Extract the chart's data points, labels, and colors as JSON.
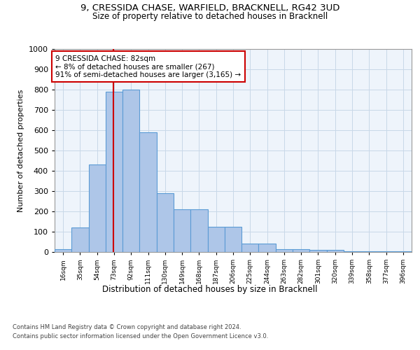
{
  "title": "9, CRESSIDA CHASE, WARFIELD, BRACKNELL, RG42 3UD",
  "subtitle": "Size of property relative to detached houses in Bracknell",
  "xlabel": "Distribution of detached houses by size in Bracknell",
  "ylabel": "Number of detached properties",
  "footer_line1": "Contains HM Land Registry data © Crown copyright and database right 2024.",
  "footer_line2": "Contains public sector information licensed under the Open Government Licence v3.0.",
  "bin_labels": [
    "16sqm",
    "35sqm",
    "54sqm",
    "73sqm",
    "92sqm",
    "111sqm",
    "130sqm",
    "149sqm",
    "168sqm",
    "187sqm",
    "206sqm",
    "225sqm",
    "244sqm",
    "263sqm",
    "282sqm",
    "301sqm",
    "320sqm",
    "339sqm",
    "358sqm",
    "377sqm",
    "396sqm"
  ],
  "bar_values": [
    15,
    120,
    430,
    790,
    800,
    590,
    290,
    210,
    210,
    125,
    125,
    40,
    40,
    15,
    15,
    10,
    10,
    5,
    5,
    3,
    5
  ],
  "bar_color": "#aec6e8",
  "bar_edge_color": "#5b9bd5",
  "grid_color": "#c8d8e8",
  "background_color": "#eef4fb",
  "annotation_text": "9 CRESSIDA CHASE: 82sqm\n← 8% of detached houses are smaller (267)\n91% of semi-detached houses are larger (3,165) →",
  "annotation_box_color": "#ffffff",
  "annotation_box_edge_color": "#cc0000",
  "vline_x": 82,
  "vline_color": "#cc0000",
  "bin_starts": [
    16,
    35,
    54,
    73,
    92,
    111,
    130,
    149,
    168,
    187,
    206,
    225,
    244,
    263,
    282,
    301,
    320,
    339,
    358,
    377,
    396
  ],
  "bin_width": 19,
  "ylim": [
    0,
    1000
  ],
  "yticks": [
    0,
    100,
    200,
    300,
    400,
    500,
    600,
    700,
    800,
    900,
    1000
  ]
}
